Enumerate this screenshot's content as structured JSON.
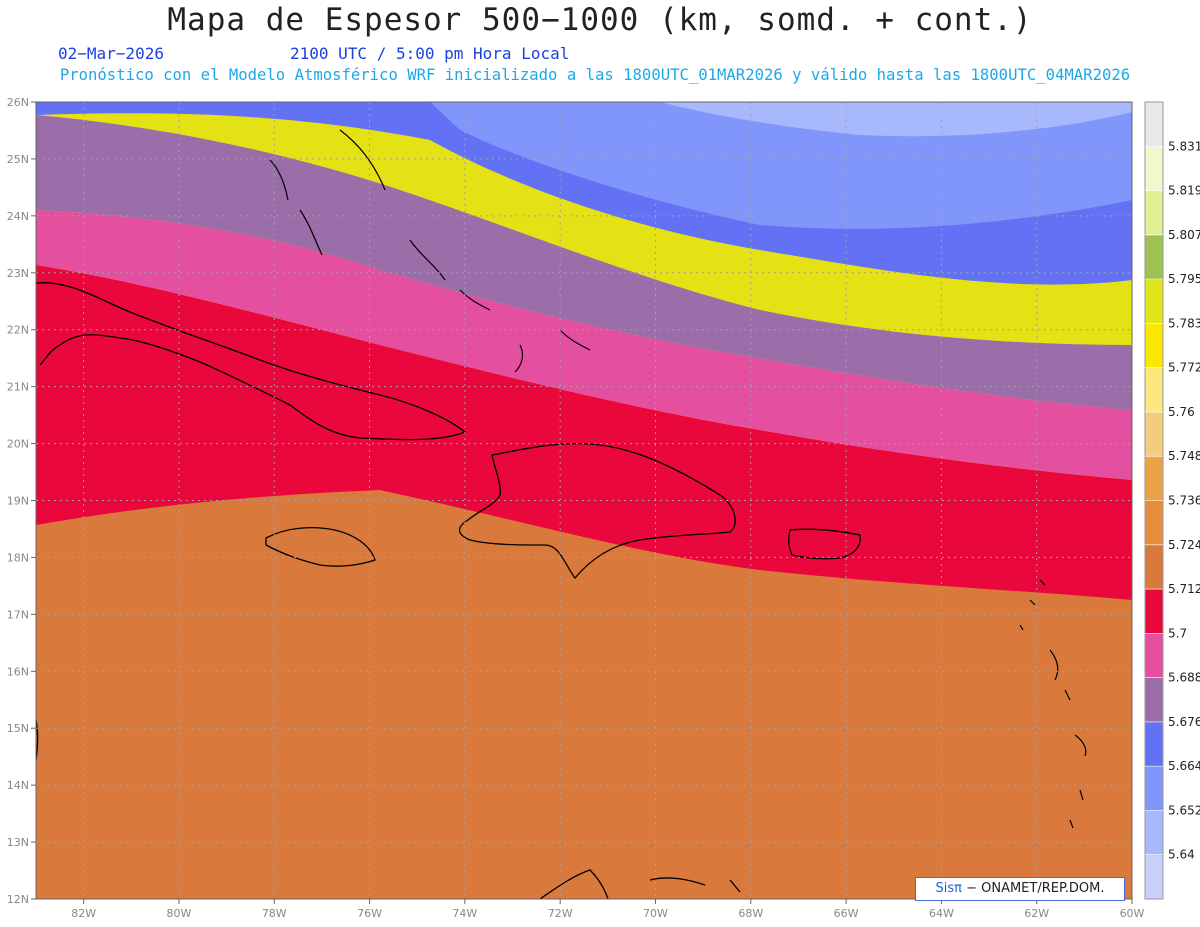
{
  "header": {
    "title": "Mapa de Espesor 500−1000 (km, somd. + cont.)",
    "date": "02−Mar−2026",
    "time": "2100 UTC / 5:00 pm Hora Local",
    "description": "Pronóstico con el Modelo Atmosférico WRF inicializado a las 1800UTC_01MAR2026 y válido hasta las  1800UTC_04MAR2026"
  },
  "map": {
    "lon_range": [
      -83,
      -60
    ],
    "lat_range": [
      12,
      26
    ],
    "lon_ticks": [
      "82W",
      "80W",
      "78W",
      "76W",
      "74W",
      "72W",
      "70W",
      "68W",
      "66W",
      "64W",
      "62W",
      "60W"
    ],
    "lat_ticks": [
      "12N",
      "13N",
      "14N",
      "15N",
      "16N",
      "17N",
      "18N",
      "19N",
      "20N",
      "21N",
      "22N",
      "23N",
      "24N",
      "25N",
      "26N"
    ],
    "grid": true
  },
  "colorbar": {
    "labels": [
      "5.64",
      "5.652",
      "5.664",
      "5.676",
      "5.688",
      "5.7",
      "5.712",
      "5.724",
      "5.736",
      "5.748",
      "5.76",
      "5.772",
      "5.783",
      "5.795",
      "5.807",
      "5.819",
      "5.831"
    ],
    "colors": [
      "#c8d0fb",
      "#a8b8fc",
      "#8096fb",
      "#6372f5",
      "#9b6ea9",
      "#e4509f",
      "#ea073b",
      "#d97a3c",
      "#e78e3d",
      "#eca348",
      "#f2cd7e",
      "#fbe77d",
      "#fbe800",
      "#dfe61a",
      "#9dc253",
      "#def092",
      "#f2f8cb",
      "#e8e8e8"
    ]
  },
  "credit": {
    "brand": "Sisπ",
    "text": " −  ONAMET/REP.DOM."
  }
}
